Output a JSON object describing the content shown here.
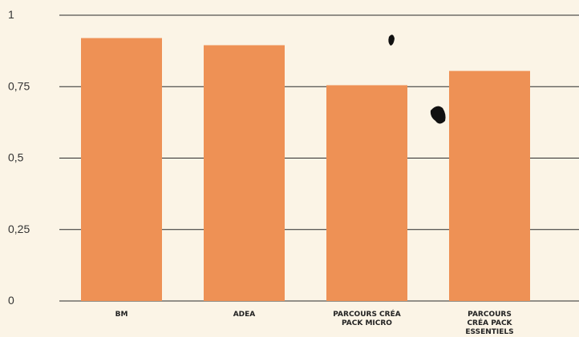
{
  "colors": {
    "background": "#fbf4e6",
    "bar": "#ee9155",
    "grid": "#2a2a2a",
    "text": "#333333"
  },
  "chart_data": {
    "type": "bar",
    "categories": [
      [
        "BM"
      ],
      [
        "ADEA"
      ],
      [
        "PARCOURS CRÉA",
        "PACK MICRO"
      ],
      [
        "PARCOURS",
        "CRÉA PACK",
        "ESSENTIELS"
      ]
    ],
    "values": [
      0.92,
      0.895,
      0.755,
      0.805
    ],
    "y_ticks": [
      {
        "value": 0,
        "label": "0"
      },
      {
        "value": 0.25,
        "label": "0,25"
      },
      {
        "value": 0.5,
        "label": "0,5"
      },
      {
        "value": 0.75,
        "label": "0,75"
      },
      {
        "value": 1,
        "label": "1"
      }
    ],
    "ylim": [
      0,
      1
    ],
    "grid": true,
    "legend": "none"
  }
}
